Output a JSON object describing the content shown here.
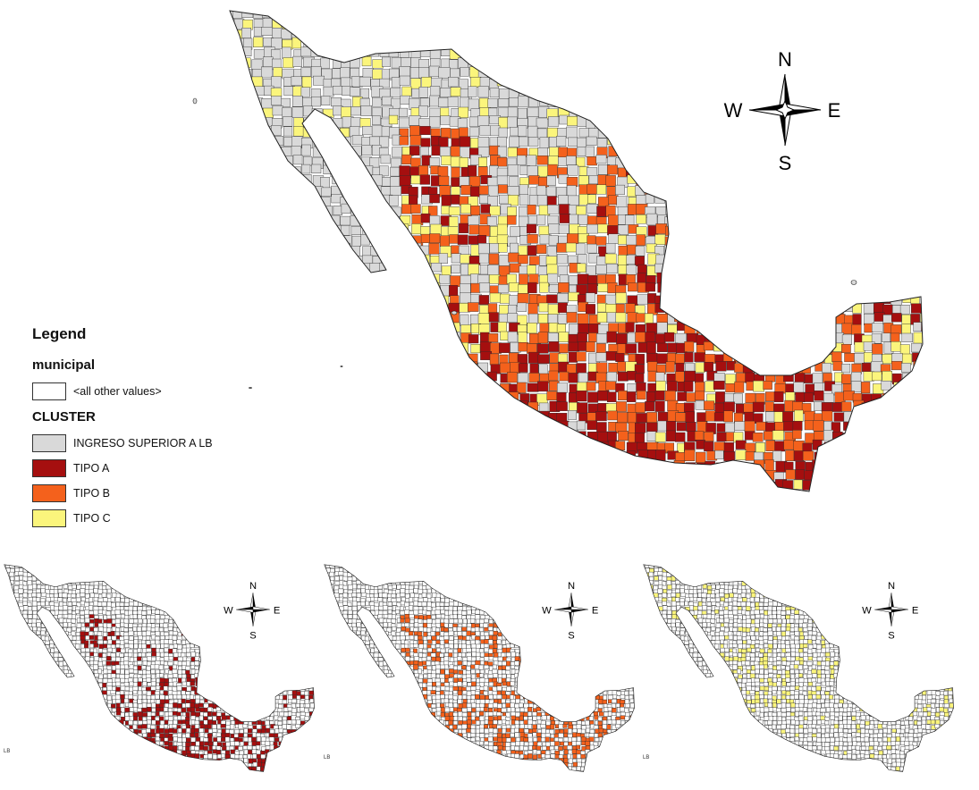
{
  "colors": {
    "superior": "#d9d9d9",
    "tipo_a": "#a50f0f",
    "tipo_b": "#f4611c",
    "tipo_c": "#fbf57c",
    "other": "#ffffff",
    "boundary": "#2b2b2b"
  },
  "compass": {
    "n": "N",
    "s": "S",
    "e": "E",
    "w": "W"
  },
  "legend": {
    "title": "Legend",
    "layer": "municipal",
    "other_label": "<all other values>",
    "field": "CLUSTER",
    "items": [
      {
        "label": "INGRESO SUPERIOR A LB",
        "color": "#d9d9d9"
      },
      {
        "label": "TIPO A",
        "color": "#a50f0f"
      },
      {
        "label": "TIPO B",
        "color": "#f4611c"
      },
      {
        "label": "TIPO C",
        "color": "#fbf57c"
      }
    ]
  },
  "small_maps": [
    {
      "highlight": "tipo_a",
      "fragment": "LB"
    },
    {
      "highlight": "tipo_b",
      "fragment": "LB"
    },
    {
      "highlight": "tipo_c",
      "fragment": "LB"
    }
  ]
}
